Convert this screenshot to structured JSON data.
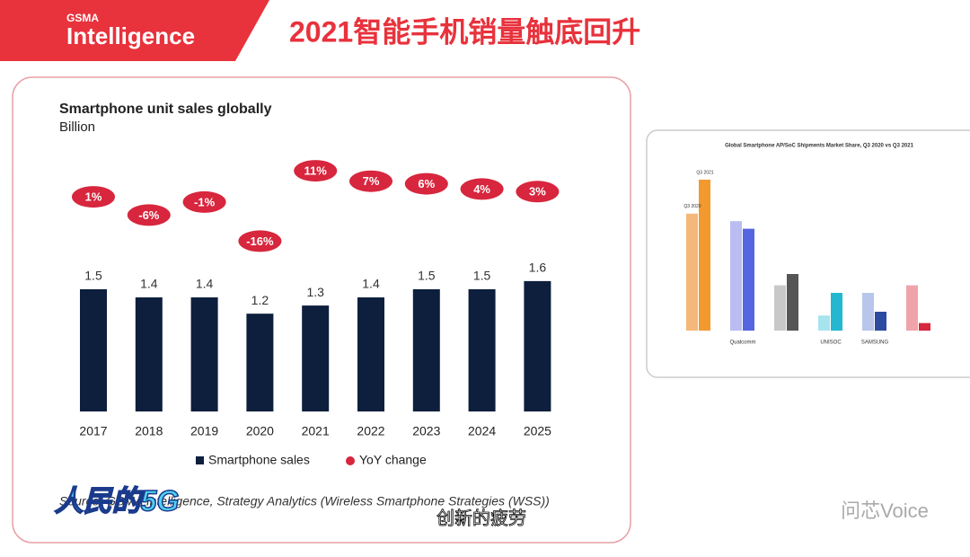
{
  "header": {
    "brand_top": "GSMA",
    "brand": "Intelligence",
    "title": "2021智能手机销量触底回升"
  },
  "chart_data": [
    {
      "type": "bar",
      "title": "Smartphone unit sales globally",
      "subtitle": "Billion",
      "categories": [
        "2017",
        "2018",
        "2019",
        "2020",
        "2021",
        "2022",
        "2023",
        "2024",
        "2025"
      ],
      "series": [
        {
          "name": "Smartphone sales",
          "color": "#0d1f3c",
          "values": [
            1.5,
            1.4,
            1.4,
            1.2,
            1.3,
            1.4,
            1.5,
            1.5,
            1.6
          ]
        },
        {
          "name": "YoY change",
          "color": "#d7263d",
          "values": [
            1,
            -6,
            -1,
            -16,
            11,
            7,
            6,
            4,
            3
          ],
          "value_labels": [
            "1%",
            "-6%",
            "-1%",
            "-16%",
            "11%",
            "7%",
            "6%",
            "4%",
            "3%"
          ]
        }
      ],
      "source": "Source: GSMA Intelligence, Strategy Analytics (Wireless Smartphone Strategies (WSS))"
    },
    {
      "type": "bar",
      "title": "Global Smartphone AP/SoC Shipments Market Share, Q3 2020 vs Q3 2021",
      "categories": [
        null,
        "Qualcomm",
        null,
        "UNISOC",
        "SAMSUNG",
        null
      ],
      "series": [
        {
          "name": "Q3 2020",
          "colors": [
            "#f5b87a",
            "#b9bdf0",
            "#c8c8c8",
            "#a6e4ee",
            "#b8c6ec",
            "#f0a3a8"
          ],
          "values": [
            31,
            29,
            12,
            4,
            10,
            12
          ]
        },
        {
          "name": "Q3 2021",
          "colors": [
            "#f39a2e",
            "#5566e0",
            "#555555",
            "#23b8cf",
            "#2b4aa0",
            "#d7263d"
          ],
          "values": [
            40,
            27,
            15,
            10,
            5,
            2
          ]
        }
      ]
    }
  ],
  "overlay": {
    "logo": "人民的5G",
    "caption": "创新的疲劳",
    "watermark": "问芯Voice"
  }
}
